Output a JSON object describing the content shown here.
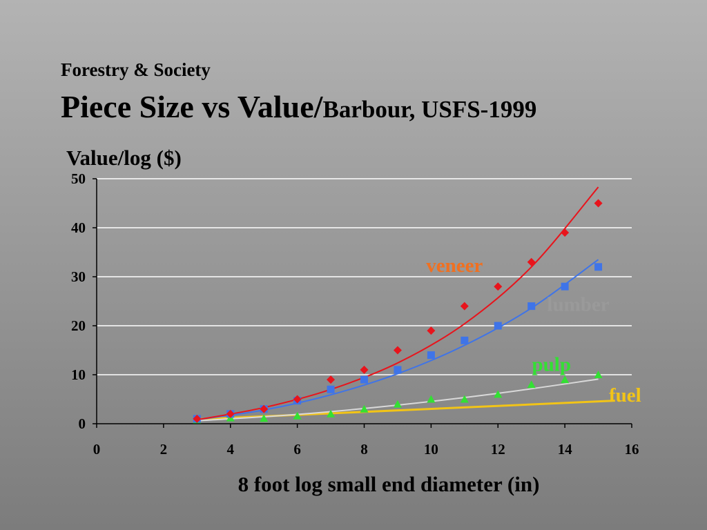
{
  "slide": {
    "overtitle": "Forestry & Society",
    "title_main": "Piece Size vs Value/",
    "title_sub": "Barbour, USFS-1999"
  },
  "colors": {
    "veneer": "#e8141c",
    "lumber": "#3f74e8",
    "pulp": "#33e033",
    "fuel": "#f2c417",
    "pulp_trend": "#d9d9d9",
    "grid": "#ffffff",
    "axis": "#000000"
  },
  "chart_data": {
    "type": "scatter",
    "title": "",
    "xlabel": "8 foot log small end diameter (in)",
    "ylabel": "Value/log ($)",
    "xlim": [
      0,
      16
    ],
    "ylim": [
      0,
      50
    ],
    "xticks": [
      0,
      2,
      4,
      6,
      8,
      10,
      12,
      14,
      16
    ],
    "yticks": [
      0,
      10,
      20,
      30,
      40,
      50
    ],
    "grid": true,
    "series": [
      {
        "name": "veneer",
        "marker": "diamond",
        "x": [
          3,
          4,
          5,
          6,
          7,
          8,
          9,
          10,
          11,
          12,
          13,
          14,
          15
        ],
        "y": [
          1,
          2,
          3,
          5,
          9,
          11,
          15,
          19,
          24,
          28,
          33,
          39,
          45
        ],
        "trend": [
          [
            3,
            0.8
          ],
          [
            5,
            3.3
          ],
          [
            7,
            7.0
          ],
          [
            9,
            12.4
          ],
          [
            11,
            20.4
          ],
          [
            13,
            32.0
          ],
          [
            15,
            48.3
          ]
        ],
        "label_pos": [
          10.7,
          31
        ]
      },
      {
        "name": "lumber",
        "marker": "square",
        "x": [
          3,
          4,
          5,
          6,
          7,
          8,
          9,
          10,
          11,
          12,
          13,
          14,
          15
        ],
        "y": [
          1,
          2,
          3,
          4.7,
          7,
          9,
          11,
          14,
          17,
          20,
          24,
          28,
          32
        ],
        "trend": [
          [
            3,
            0.8
          ],
          [
            5,
            2.8
          ],
          [
            7,
            5.9
          ],
          [
            9,
            10.2
          ],
          [
            11,
            16.0
          ],
          [
            13,
            23.6
          ],
          [
            15,
            33.5
          ]
        ],
        "label_pos": [
          14.4,
          23
        ]
      },
      {
        "name": "pulp",
        "marker": "triangle",
        "x": [
          3,
          4,
          5,
          6,
          7,
          8,
          9,
          10,
          11,
          12,
          13,
          14,
          15
        ],
        "y": [
          0.8,
          1.2,
          1.1,
          1.6,
          2,
          3,
          4,
          5,
          5,
          6,
          8,
          9,
          10
        ],
        "trend": [
          [
            3,
            0.6
          ],
          [
            6,
            1.9
          ],
          [
            9,
            3.8
          ],
          [
            12,
            6.2
          ],
          [
            15,
            9.1
          ]
        ],
        "label_pos": [
          13.6,
          10.8
        ]
      },
      {
        "name": "fuel",
        "marker": "none",
        "x": [],
        "y": [],
        "trend": [
          [
            3,
            0.9
          ],
          [
            15.5,
            4.7
          ]
        ],
        "label_pos": [
          15.8,
          4.5
        ]
      }
    ]
  }
}
